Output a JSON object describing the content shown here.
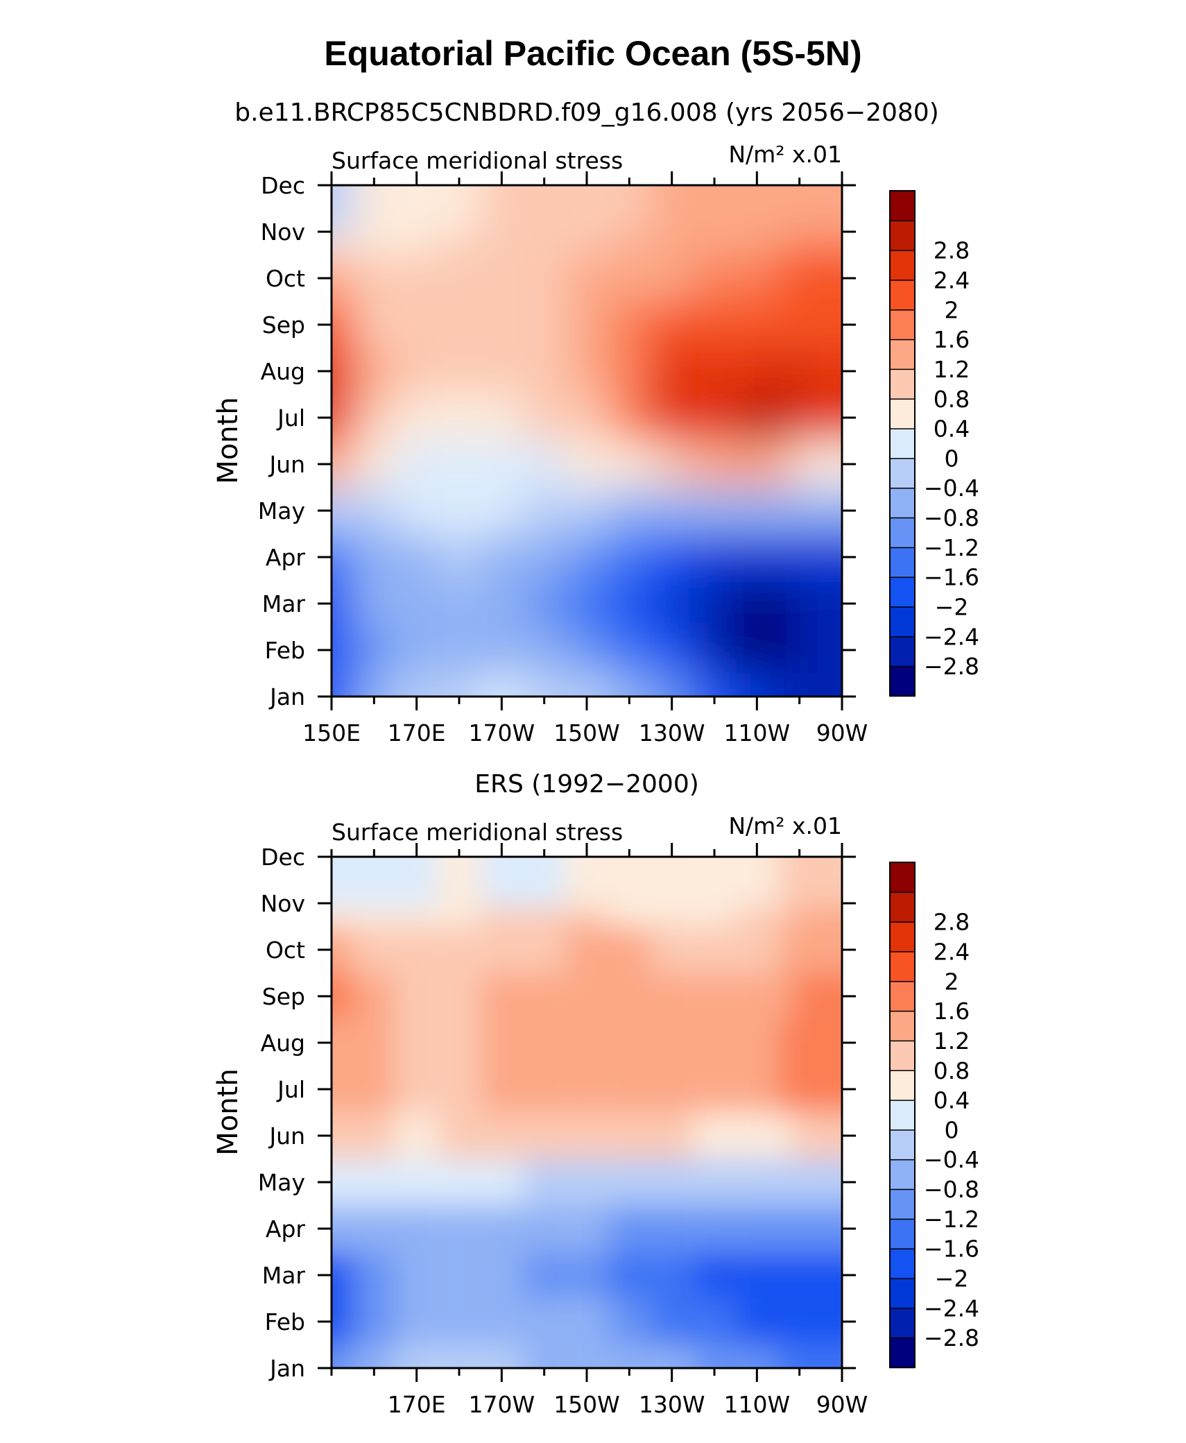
{
  "title": "Equatorial Pacific Ocean (5S-5N)",
  "colorbar": {
    "colors": [
      "#00007f",
      "#0020b0",
      "#0039d8",
      "#1452f2",
      "#3c73f5",
      "#6693f5",
      "#8fb1f5",
      "#b6cdf8",
      "#dcebfc",
      "#fdebdc",
      "#fcc9b2",
      "#fca786",
      "#fb7e55",
      "#f75323",
      "#e33308",
      "#bd1b02",
      "#8d0000"
    ],
    "labels": [
      "-2.8",
      "-2.4",
      "-2",
      "-1.6",
      "-1.2",
      "-0.8",
      "-0.4",
      "0",
      "0.4",
      "0.8",
      "1.2",
      "1.6",
      "2",
      "2.4",
      "2.8"
    ]
  },
  "chart_data": [
    {
      "type": "heatmap",
      "subtitle": "b.e11.BRCP85C5CNBDRD.f09_g16.008 (yrs 2056−2080)",
      "left_label": "Surface meridional stress",
      "right_label": "N/m² x.01",
      "xlabel": "",
      "ylabel": "Month",
      "x_ticks": [
        "150E",
        "170E",
        "170W",
        "150W",
        "130W",
        "110W",
        "90W"
      ],
      "y_ticks": [
        "Jan",
        "Feb",
        "Mar",
        "Apr",
        "May",
        "Jun",
        "Jul",
        "Aug",
        "Sep",
        "Oct",
        "Nov",
        "Dec"
      ],
      "x": [
        150,
        160,
        170,
        180,
        190,
        200,
        210,
        220,
        230,
        240,
        250,
        260,
        270
      ],
      "y": [
        "Jan",
        "Feb",
        "Mar",
        "Apr",
        "May",
        "Jun",
        "Jul",
        "Aug",
        "Sep",
        "Oct",
        "Nov",
        "Dec"
      ],
      "values": [
        [
          -2.2,
          -1.0,
          -0.6,
          -0.4,
          -0.3,
          -0.4,
          -0.6,
          -0.9,
          -1.4,
          -2.2,
          -2.8,
          -2.9,
          -3.0
        ],
        [
          -2.4,
          -1.3,
          -0.9,
          -0.8,
          -0.8,
          -1.0,
          -1.3,
          -1.8,
          -2.4,
          -3.0,
          -3.2,
          -3.2,
          -3.1
        ],
        [
          -2.3,
          -1.2,
          -1.1,
          -1.0,
          -1.0,
          -1.4,
          -1.8,
          -2.2,
          -2.7,
          -3.1,
          -3.2,
          -3.2,
          -3.1
        ],
        [
          -1.8,
          -0.9,
          -0.9,
          -0.7,
          -0.8,
          -1.0,
          -1.3,
          -1.7,
          -2.1,
          -2.5,
          -2.7,
          -2.7,
          -2.5
        ],
        [
          -0.5,
          -0.4,
          -0.3,
          -0.3,
          -0.3,
          -0.5,
          -0.7,
          -0.9,
          -1.1,
          -1.2,
          -1.2,
          -1.1,
          -0.9
        ],
        [
          1.2,
          0.2,
          -0.1,
          -0.1,
          -0.1,
          -0.1,
          0.0,
          0.3,
          0.7,
          1.1,
          1.2,
          0.8,
          0.3
        ],
        [
          2.3,
          0.5,
          0.3,
          0.3,
          0.3,
          0.4,
          0.7,
          1.3,
          2.0,
          2.3,
          2.6,
          2.5,
          2.2
        ],
        [
          2.2,
          0.8,
          0.5,
          0.5,
          0.5,
          0.6,
          0.9,
          1.4,
          2.0,
          2.3,
          2.4,
          2.6,
          2.3
        ],
        [
          1.6,
          0.7,
          0.5,
          0.5,
          0.6,
          0.7,
          0.9,
          1.3,
          1.6,
          1.8,
          1.9,
          1.9,
          1.8
        ],
        [
          0.8,
          0.6,
          0.5,
          0.5,
          0.5,
          0.6,
          0.8,
          1.0,
          1.1,
          1.3,
          1.5,
          1.7,
          1.8
        ],
        [
          0.3,
          0.3,
          0.3,
          0.4,
          0.5,
          0.6,
          0.7,
          0.9,
          1.0,
          1.1,
          1.2,
          1.4,
          1.4
        ],
        [
          -0.5,
          0.1,
          0.3,
          0.3,
          0.4,
          0.5,
          0.6,
          0.7,
          0.8,
          0.9,
          1.0,
          1.0,
          1.0
        ]
      ],
      "zlim": [
        -3.2,
        3.2
      ]
    },
    {
      "type": "heatmap",
      "subtitle": "ERS (1992−2000)",
      "left_label": "Surface meridional stress",
      "right_label": "N/m² x.01",
      "xlabel": "",
      "ylabel": "Month",
      "x_ticks": [
        "170E",
        "170W",
        "150W",
        "130W",
        "110W",
        "90W"
      ],
      "y_ticks": [
        "Jan",
        "Feb",
        "Mar",
        "Apr",
        "May",
        "Jun",
        "Jul",
        "Aug",
        "Sep",
        "Oct",
        "Nov",
        "Dec"
      ],
      "x": [
        150,
        160,
        170,
        180,
        190,
        200,
        210,
        220,
        230,
        240,
        250,
        260,
        270
      ],
      "y": [
        "Jan",
        "Feb",
        "Mar",
        "Apr",
        "May",
        "Jun",
        "Jul",
        "Aug",
        "Sep",
        "Oct",
        "Nov",
        "Dec"
      ],
      "values": [
        [
          -1.5,
          -1.1,
          -0.7,
          -0.5,
          -0.6,
          -0.8,
          -0.8,
          -0.9,
          -1.2,
          -1.3,
          -1.5,
          -1.6,
          -1.6
        ],
        [
          -2.0,
          -1.4,
          -1.0,
          -0.9,
          -1.0,
          -1.2,
          -1.2,
          -1.4,
          -1.6,
          -1.9,
          -2.1,
          -2.2,
          -2.2
        ],
        [
          -2.1,
          -1.3,
          -1.0,
          -1.0,
          -1.1,
          -1.3,
          -1.4,
          -1.6,
          -1.8,
          -2.1,
          -2.3,
          -2.3,
          -2.3
        ],
        [
          -1.1,
          -0.9,
          -0.8,
          -0.8,
          -0.9,
          -1.1,
          -1.2,
          -1.3,
          -1.4,
          -1.5,
          -1.5,
          -1.5,
          -1.3
        ],
        [
          -0.2,
          -0.3,
          -0.2,
          -0.2,
          -0.3,
          -0.4,
          -0.4,
          -0.5,
          -0.5,
          -0.6,
          -0.6,
          -0.6,
          -0.5
        ],
        [
          0.4,
          0.4,
          0.3,
          0.4,
          0.4,
          0.5,
          0.5,
          0.5,
          0.4,
          0.3,
          0.2,
          0.3,
          0.4
        ],
        [
          0.8,
          0.8,
          0.6,
          0.7,
          0.8,
          0.8,
          0.8,
          0.8,
          0.8,
          0.9,
          0.9,
          1.3,
          1.5
        ],
        [
          1.1,
          0.8,
          0.6,
          0.7,
          0.9,
          1.0,
          0.9,
          1.0,
          1.0,
          0.9,
          0.9,
          1.3,
          1.4
        ],
        [
          1.4,
          0.9,
          0.7,
          0.7,
          0.8,
          0.9,
          1.0,
          1.0,
          0.9,
          0.8,
          0.8,
          1.0,
          1.3
        ],
        [
          0.8,
          0.6,
          0.5,
          0.5,
          0.6,
          0.7,
          0.8,
          0.8,
          0.6,
          0.6,
          0.7,
          0.8,
          1.1
        ],
        [
          0.2,
          0.3,
          0.3,
          0.3,
          0.4,
          0.4,
          0.4,
          0.3,
          0.2,
          0.3,
          0.6,
          0.7,
          0.8
        ],
        [
          -0.3,
          -0.2,
          -0.1,
          0.0,
          -0.1,
          -0.3,
          0.1,
          0.2,
          0.2,
          0.2,
          0.3,
          0.4,
          0.4
        ]
      ],
      "zlim": [
        -3.2,
        3.2
      ]
    }
  ]
}
